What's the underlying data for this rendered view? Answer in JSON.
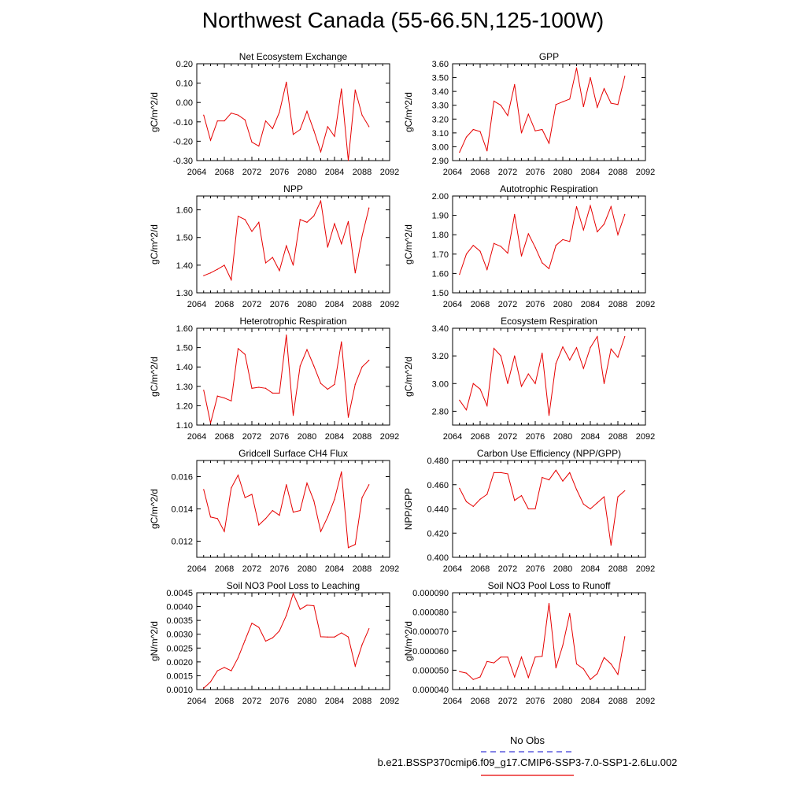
{
  "figure_title": "Northwest Canada (55-66.5N,125-100W)",
  "legend": {
    "obs_label": "No Obs",
    "obs_color": "#3b3bd6",
    "model_label": "b.e21.BSSP370cmip6.f09_g17.CMIP6-SSP3-7.0-SSP1-2.6Lu.002",
    "model_color": "#e60000"
  },
  "chart_data": [
    {
      "type": "line",
      "title": "Net Ecosystem Exchange",
      "ylabel": "gC/m^2/d",
      "xlim": [
        2064,
        2092
      ],
      "xticks": [
        "2064",
        "2068",
        "2072",
        "2076",
        "2080",
        "2084",
        "2088",
        "2092"
      ],
      "ylim": [
        -0.3,
        0.2
      ],
      "yticks": [
        "-0.30",
        "-0.20",
        "-0.10",
        "0.00",
        "0.10",
        "0.20"
      ],
      "x": [
        2065,
        2066,
        2067,
        2068,
        2069,
        2070,
        2071,
        2072,
        2073,
        2074,
        2075,
        2076,
        2077,
        2078,
        2079,
        2080,
        2081,
        2082,
        2083,
        2084,
        2085,
        2086,
        2087,
        2088,
        2089
      ],
      "values": [
        -0.065,
        -0.195,
        -0.095,
        -0.095,
        -0.055,
        -0.065,
        -0.09,
        -0.205,
        -0.225,
        -0.095,
        -0.135,
        -0.05,
        0.105,
        -0.165,
        -0.14,
        -0.045,
        -0.145,
        -0.255,
        -0.125,
        -0.175,
        0.07,
        -0.3,
        0.065,
        -0.065,
        -0.125
      ]
    },
    {
      "type": "line",
      "title": "GPP",
      "ylabel": "gC/m^2/d",
      "xlim": [
        2064,
        2092
      ],
      "xticks": [
        "2064",
        "2068",
        "2072",
        "2076",
        "2080",
        "2084",
        "2088",
        "2092"
      ],
      "ylim": [
        2.9,
        3.6
      ],
      "yticks": [
        "2.90",
        "3.00",
        "3.10",
        "3.20",
        "3.30",
        "3.40",
        "3.50",
        "3.60"
      ],
      "x": [
        2065,
        2066,
        2067,
        2068,
        2069,
        2070,
        2071,
        2072,
        2073,
        2074,
        2075,
        2076,
        2077,
        2078,
        2079,
        2080,
        2081,
        2082,
        2083,
        2084,
        2085,
        2086,
        2087,
        2088,
        2089
      ],
      "values": [
        2.96,
        3.07,
        3.125,
        3.11,
        2.97,
        3.33,
        3.3,
        3.225,
        3.45,
        3.1,
        3.235,
        3.115,
        3.125,
        3.025,
        3.305,
        3.325,
        3.345,
        3.57,
        3.29,
        3.5,
        3.285,
        3.42,
        3.315,
        3.305,
        3.51
      ]
    },
    {
      "type": "line",
      "title": "NPP",
      "ylabel": "gC/m^2/d",
      "xlim": [
        2064,
        2092
      ],
      "xticks": [
        "2064",
        "2068",
        "2072",
        "2076",
        "2080",
        "2084",
        "2088",
        "2092"
      ],
      "ylim": [
        1.3,
        1.65
      ],
      "yticks": [
        "1.30",
        "1.40",
        "1.50",
        "1.60"
      ],
      "x": [
        2065,
        2066,
        2067,
        2068,
        2069,
        2070,
        2071,
        2072,
        2073,
        2074,
        2075,
        2076,
        2077,
        2078,
        2079,
        2080,
        2081,
        2082,
        2083,
        2084,
        2085,
        2086,
        2087,
        2088,
        2089
      ],
      "values": [
        1.362,
        1.372,
        1.385,
        1.4,
        1.347,
        1.577,
        1.565,
        1.522,
        1.555,
        1.408,
        1.428,
        1.38,
        1.47,
        1.4,
        1.565,
        1.555,
        1.578,
        1.632,
        1.465,
        1.55,
        1.477,
        1.558,
        1.372,
        1.505,
        1.607
      ]
    },
    {
      "type": "line",
      "title": "Autotrophic Respiration",
      "ylabel": "gC/m^2/d",
      "xlim": [
        2064,
        2092
      ],
      "xticks": [
        "2064",
        "2068",
        "2072",
        "2076",
        "2080",
        "2084",
        "2088",
        "2092"
      ],
      "ylim": [
        1.5,
        2.0
      ],
      "yticks": [
        "1.50",
        "1.60",
        "1.70",
        "1.80",
        "1.90",
        "2.00"
      ],
      "x": [
        2065,
        2066,
        2067,
        2068,
        2069,
        2070,
        2071,
        2072,
        2073,
        2074,
        2075,
        2076,
        2077,
        2078,
        2079,
        2080,
        2081,
        2082,
        2083,
        2084,
        2085,
        2086,
        2087,
        2088,
        2089
      ],
      "values": [
        1.595,
        1.7,
        1.745,
        1.715,
        1.62,
        1.755,
        1.74,
        1.705,
        1.905,
        1.69,
        1.805,
        1.735,
        1.655,
        1.625,
        1.745,
        1.775,
        1.765,
        1.945,
        1.825,
        1.95,
        1.815,
        1.855,
        1.945,
        1.8,
        1.905
      ]
    },
    {
      "type": "line",
      "title": "Heterotrophic Respiration",
      "ylabel": "gC/m^2/d",
      "xlim": [
        2064,
        2092
      ],
      "xticks": [
        "2064",
        "2068",
        "2072",
        "2076",
        "2080",
        "2084",
        "2088",
        "2092"
      ],
      "ylim": [
        1.1,
        1.6
      ],
      "yticks": [
        "1.10",
        "1.20",
        "1.30",
        "1.40",
        "1.50",
        "1.60"
      ],
      "x": [
        2065,
        2066,
        2067,
        2068,
        2069,
        2070,
        2071,
        2072,
        2073,
        2074,
        2075,
        2076,
        2077,
        2078,
        2079,
        2080,
        2081,
        2082,
        2083,
        2084,
        2085,
        2086,
        2087,
        2088,
        2089
      ],
      "values": [
        1.28,
        1.11,
        1.25,
        1.24,
        1.225,
        1.495,
        1.465,
        1.29,
        1.295,
        1.29,
        1.265,
        1.265,
        1.565,
        1.15,
        1.405,
        1.49,
        1.405,
        1.315,
        1.285,
        1.31,
        1.53,
        1.14,
        1.31,
        1.4,
        1.435
      ]
    },
    {
      "type": "line",
      "title": "Ecosystem Respiration",
      "ylabel": "gC/m^2/d",
      "xlim": [
        2064,
        2092
      ],
      "xticks": [
        "2064",
        "2068",
        "2072",
        "2076",
        "2080",
        "2084",
        "2088",
        "2092"
      ],
      "ylim": [
        2.7,
        3.4
      ],
      "yticks": [
        "2.80",
        "3.00",
        "3.20",
        "3.40"
      ],
      "x": [
        2065,
        2066,
        2067,
        2068,
        2069,
        2070,
        2071,
        2072,
        2073,
        2074,
        2075,
        2076,
        2077,
        2078,
        2079,
        2080,
        2081,
        2082,
        2083,
        2084,
        2085,
        2086,
        2087,
        2088,
        2089
      ],
      "values": [
        2.88,
        2.81,
        3.0,
        2.96,
        2.84,
        3.255,
        3.2,
        3.0,
        3.2,
        2.98,
        3.07,
        3.0,
        3.22,
        2.77,
        3.145,
        3.265,
        3.17,
        3.26,
        3.11,
        3.26,
        3.34,
        3.0,
        3.25,
        3.19,
        3.34
      ]
    },
    {
      "type": "line",
      "title": "Gridcell Surface CH4 Flux",
      "ylabel": "gC/m^2/d",
      "xlim": [
        2064,
        2092
      ],
      "xticks": [
        "2064",
        "2068",
        "2072",
        "2076",
        "2080",
        "2084",
        "2088",
        "2092"
      ],
      "ylim": [
        0.011,
        0.017
      ],
      "yticks": [
        "0.012",
        "0.014",
        "0.016"
      ],
      "x": [
        2065,
        2066,
        2067,
        2068,
        2069,
        2070,
        2071,
        2072,
        2073,
        2074,
        2075,
        2076,
        2077,
        2078,
        2079,
        2080,
        2081,
        2082,
        2083,
        2084,
        2085,
        2086,
        2087,
        2088,
        2089
      ],
      "values": [
        0.0152,
        0.0135,
        0.0134,
        0.0126,
        0.0153,
        0.0161,
        0.0147,
        0.0149,
        0.013,
        0.0134,
        0.0139,
        0.0136,
        0.0155,
        0.0138,
        0.0139,
        0.0156,
        0.0145,
        0.0126,
        0.0135,
        0.0146,
        0.0163,
        0.0116,
        0.0118,
        0.0147,
        0.0155
      ]
    },
    {
      "type": "line",
      "title": "Carbon Use Efficiency (NPP/GPP)",
      "ylabel": "NPP/GPP",
      "xlim": [
        2064,
        2092
      ],
      "xticks": [
        "2064",
        "2068",
        "2072",
        "2076",
        "2080",
        "2084",
        "2088",
        "2092"
      ],
      "ylim": [
        0.4,
        0.48
      ],
      "yticks": [
        "0.400",
        "0.420",
        "0.440",
        "0.460",
        "0.480"
      ],
      "x": [
        2065,
        2066,
        2067,
        2068,
        2069,
        2070,
        2071,
        2072,
        2073,
        2074,
        2075,
        2076,
        2077,
        2078,
        2079,
        2080,
        2081,
        2082,
        2083,
        2084,
        2085,
        2086,
        2087,
        2088,
        2089
      ],
      "values": [
        0.457,
        0.446,
        0.442,
        0.448,
        0.452,
        0.47,
        0.47,
        0.469,
        0.447,
        0.451,
        0.44,
        0.44,
        0.466,
        0.464,
        0.472,
        0.463,
        0.47,
        0.456,
        0.444,
        0.44,
        0.445,
        0.45,
        0.41,
        0.45,
        0.455
      ]
    },
    {
      "type": "line",
      "title": "Soil NO3 Pool Loss to Leaching",
      "ylabel": "gN/m^2/d",
      "xlim": [
        2064,
        2092
      ],
      "xticks": [
        "2064",
        "2068",
        "2072",
        "2076",
        "2080",
        "2084",
        "2088",
        "2092"
      ],
      "ylim": [
        0.001,
        0.0045
      ],
      "yticks": [
        "0.0010",
        "0.0015",
        "0.0020",
        "0.0025",
        "0.0030",
        "0.0035",
        "0.0040",
        "0.0045"
      ],
      "x": [
        2065,
        2066,
        2067,
        2068,
        2069,
        2070,
        2071,
        2072,
        2073,
        2074,
        2075,
        2076,
        2077,
        2078,
        2079,
        2080,
        2081,
        2082,
        2083,
        2084,
        2085,
        2086,
        2087,
        2088,
        2089
      ],
      "values": [
        0.00105,
        0.00128,
        0.00168,
        0.0018,
        0.00168,
        0.00215,
        0.00278,
        0.0034,
        0.00325,
        0.00275,
        0.00287,
        0.00312,
        0.00368,
        0.00447,
        0.0039,
        0.00405,
        0.00403,
        0.00291,
        0.0029,
        0.0029,
        0.00305,
        0.0029,
        0.00185,
        0.00262,
        0.0032
      ]
    },
    {
      "type": "line",
      "title": "Soil NO3 Pool Loss to Runoff",
      "ylabel": "gN/m^2/d",
      "xlim": [
        2064,
        2092
      ],
      "xticks": [
        "2064",
        "2068",
        "2072",
        "2076",
        "2080",
        "2084",
        "2088",
        "2092"
      ],
      "ylim": [
        4e-05,
        9e-05
      ],
      "yticks": [
        "0.000040",
        "0.000050",
        "0.000060",
        "0.000070",
        "0.000080",
        "0.000090"
      ],
      "x": [
        2065,
        2066,
        2067,
        2068,
        2069,
        2070,
        2071,
        2072,
        2073,
        2074,
        2075,
        2076,
        2077,
        2078,
        2079,
        2080,
        2081,
        2082,
        2083,
        2084,
        2085,
        2086,
        2087,
        2088,
        2089
      ],
      "values": [
        4.93e-05,
        4.85e-05,
        4.52e-05,
        4.65e-05,
        5.45e-05,
        5.38e-05,
        5.68e-05,
        5.68e-05,
        4.65e-05,
        5.68e-05,
        4.62e-05,
        5.68e-05,
        5.72e-05,
        8.45e-05,
        5.12e-05,
        6.28e-05,
        7.93e-05,
        5.32e-05,
        5.07e-05,
        4.52e-05,
        4.82e-05,
        5.65e-05,
        5.32e-05,
        4.78e-05,
        6.73e-05
      ]
    }
  ]
}
